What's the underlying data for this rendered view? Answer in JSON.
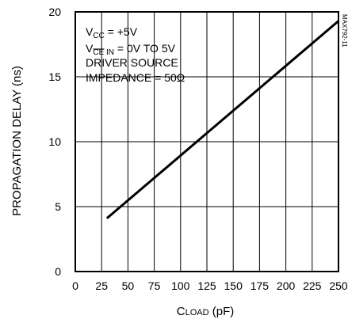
{
  "chart_data": {
    "type": "line",
    "code": "MAX792-11",
    "xlabel": {
      "main": "C",
      "sub": "LOAD",
      "unit": " (pF)"
    },
    "ylabel": "PROPAGATION DELAY (ns)",
    "xlim": [
      0,
      250
    ],
    "ylim": [
      0,
      20
    ],
    "x_ticks": [
      "0",
      "25",
      "50",
      "75",
      "100",
      "125",
      "150",
      "175",
      "200",
      "225",
      "250"
    ],
    "y_ticks": [
      "0",
      "5",
      "10",
      "15",
      "20"
    ],
    "grid": true,
    "annotations": {
      "line1": {
        "main": "V",
        "sub": "CC",
        "rest": " = +5V"
      },
      "line2": {
        "main": "V",
        "sub_over": "CE",
        "sub": " IN",
        "rest": " = 0V TO 5V"
      },
      "line3": "DRIVER SOURCE",
      "line4": "IMPEDANCE = 50Ω"
    },
    "series": [
      {
        "x": [
          30,
          250
        ],
        "y": [
          4.1,
          19.3
        ]
      }
    ],
    "line_color": "#000000"
  }
}
